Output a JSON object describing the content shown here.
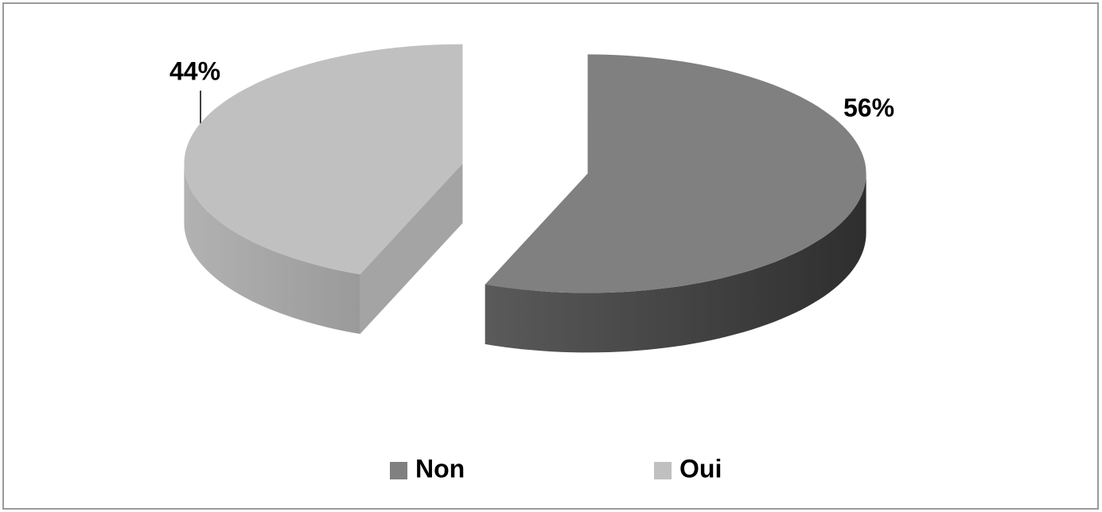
{
  "chart_data": {
    "type": "pie3d",
    "categories": [
      "Non",
      "Oui"
    ],
    "values": [
      56,
      44
    ],
    "value_labels": [
      "56%",
      "44%"
    ],
    "colors": [
      "#808080",
      "#c0c0c0"
    ],
    "legend": "bottom"
  }
}
